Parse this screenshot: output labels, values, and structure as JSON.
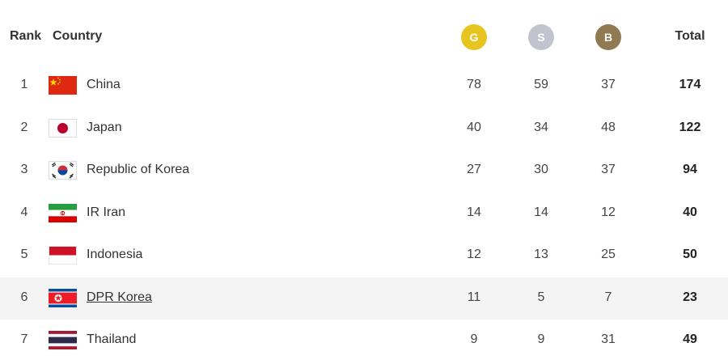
{
  "header": {
    "rank_label": "Rank",
    "country_label": "Country",
    "gold_label": "G",
    "silver_label": "S",
    "bronze_label": "B",
    "total_label": "Total"
  },
  "colors": {
    "gold": "#e8c421",
    "silver": "#c3c3cf",
    "bronze": "#8f7a52",
    "highlight_row": "#f4f4f4"
  },
  "rows": [
    {
      "rank": "1",
      "country": "China",
      "flag": "china-flag-icon",
      "gold": "78",
      "silver": "59",
      "bronze": "37",
      "total": "174"
    },
    {
      "rank": "2",
      "country": "Japan",
      "flag": "japan-flag-icon",
      "gold": "40",
      "silver": "34",
      "bronze": "48",
      "total": "122"
    },
    {
      "rank": "3",
      "country": "Republic of Korea",
      "flag": "south-korea-flag-icon",
      "gold": "27",
      "silver": "30",
      "bronze": "37",
      "total": "94"
    },
    {
      "rank": "4",
      "country": "IR Iran",
      "flag": "iran-flag-icon",
      "gold": "14",
      "silver": "14",
      "bronze": "12",
      "total": "40"
    },
    {
      "rank": "5",
      "country": "Indonesia",
      "flag": "indonesia-flag-icon",
      "gold": "12",
      "silver": "13",
      "bronze": "25",
      "total": "50"
    },
    {
      "rank": "6",
      "country": "DPR Korea",
      "flag": "north-korea-flag-icon",
      "gold": "11",
      "silver": "5",
      "bronze": "7",
      "total": "23"
    },
    {
      "rank": "7",
      "country": "Thailand",
      "flag": "thailand-flag-icon",
      "gold": "9",
      "silver": "9",
      "bronze": "31",
      "total": "49"
    }
  ]
}
